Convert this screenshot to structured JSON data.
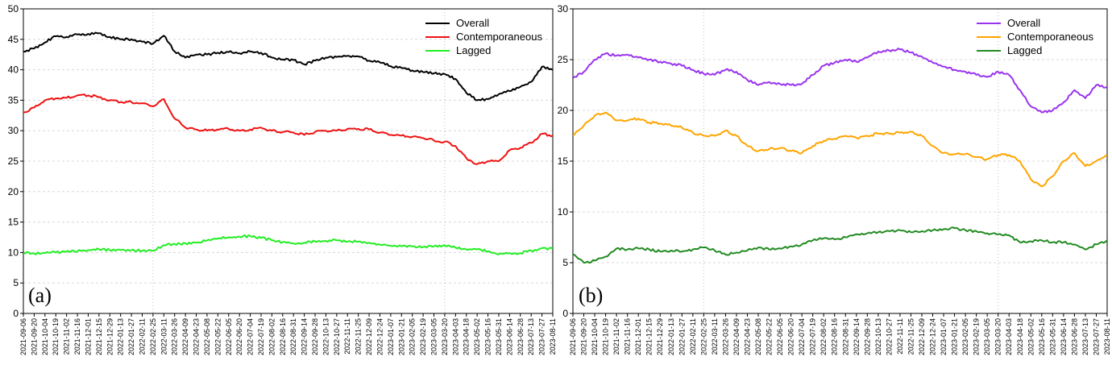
{
  "chart_data": [
    {
      "type": "line",
      "panel_label": "(a)",
      "ylim": [
        0,
        50
      ],
      "y_ticks": [
        0,
        5,
        10,
        15,
        20,
        25,
        30,
        35,
        40,
        45,
        50
      ],
      "x_tick_labels": [
        "2021-09-06",
        "2021-09-20",
        "2021-10-04",
        "2021-10-19",
        "2021-11-02",
        "2021-11-16",
        "2021-12-01",
        "2021-12-15",
        "2021-12-29",
        "2022-01-13",
        "2022-01-27",
        "2022-02-11",
        "2022-02-25",
        "2022-03-11",
        "2022-03-26",
        "2022-04-09",
        "2022-04-23",
        "2022-05-08",
        "2022-05-22",
        "2022-06-05",
        "2022-06-20",
        "2022-07-04",
        "2022-07-19",
        "2022-08-02",
        "2022-08-16",
        "2022-08-31",
        "2022-09-14",
        "2022-09-28",
        "2022-10-13",
        "2022-10-27",
        "2022-11-11",
        "2022-11-25",
        "2022-12-09",
        "2022-12-24",
        "2023-01-07",
        "2023-01-21",
        "2023-02-05",
        "2023-02-19",
        "2023-03-05",
        "2023-03-20",
        "2023-04-03",
        "2023-04-18",
        "2023-05-02",
        "2023-05-16",
        "2023-05-31",
        "2023-06-14",
        "2023-06-28",
        "2023-07-13",
        "2023-07-27",
        "2023-08-11"
      ],
      "vlines_at_label_index": [
        12,
        39
      ],
      "grid": true,
      "legend_position": "top-right",
      "series": [
        {
          "name": "Overall",
          "color": "#000000",
          "values": [
            43.0,
            43.5,
            44.5,
            45.5,
            45.4,
            45.8,
            45.9,
            46.0,
            45.4,
            45.0,
            45.0,
            44.6,
            44.3,
            45.6,
            43.0,
            42.0,
            42.5,
            42.5,
            42.8,
            42.9,
            42.7,
            43.0,
            42.8,
            42.0,
            41.7,
            41.6,
            40.9,
            41.5,
            42.0,
            42.1,
            42.3,
            42.2,
            41.5,
            41.2,
            40.6,
            40.3,
            39.9,
            39.6,
            39.4,
            39.3,
            38.5,
            36.2,
            35.0,
            35.2,
            36.0,
            36.5,
            37.2,
            38.0,
            40.5,
            40.0
          ]
        },
        {
          "name": "Contemporaneous",
          "color": "#ee1111",
          "values": [
            33.0,
            33.8,
            35.0,
            35.3,
            35.4,
            35.8,
            35.8,
            35.5,
            35.0,
            34.7,
            34.7,
            34.5,
            34.0,
            35.2,
            32.0,
            30.5,
            30.2,
            30.0,
            30.2,
            30.3,
            30.0,
            30.2,
            30.5,
            30.0,
            29.8,
            29.7,
            29.3,
            29.8,
            30.0,
            30.0,
            30.3,
            30.3,
            30.2,
            29.7,
            29.3,
            29.2,
            29.0,
            28.8,
            28.4,
            28.2,
            27.5,
            25.5,
            24.5,
            25.0,
            25.0,
            26.8,
            27.2,
            28.0,
            29.5,
            29.2
          ]
        },
        {
          "name": "Lagged",
          "color": "#22ee22",
          "values": [
            10.0,
            9.8,
            9.9,
            10.0,
            10.2,
            10.2,
            10.4,
            10.5,
            10.4,
            10.4,
            10.4,
            10.3,
            10.3,
            11.2,
            11.4,
            11.5,
            11.6,
            12.0,
            12.3,
            12.5,
            12.6,
            12.7,
            12.4,
            12.0,
            11.7,
            11.5,
            11.6,
            11.8,
            11.9,
            12.0,
            11.8,
            11.8,
            11.6,
            11.3,
            11.1,
            11.0,
            11.0,
            10.9,
            11.0,
            11.2,
            10.8,
            10.5,
            10.5,
            10.2,
            9.7,
            9.9,
            9.9,
            10.3,
            10.7,
            10.6
          ]
        }
      ]
    },
    {
      "type": "line",
      "panel_label": "(b)",
      "ylim": [
        0,
        30
      ],
      "y_ticks": [
        0,
        5,
        10,
        15,
        20,
        25,
        30
      ],
      "x_tick_labels": [
        "2021-09-06",
        "2021-09-20",
        "2021-10-04",
        "2021-10-19",
        "2021-11-02",
        "2021-11-16",
        "2021-12-01",
        "2021-12-15",
        "2021-12-29",
        "2022-01-13",
        "2022-01-27",
        "2022-02-11",
        "2022-02-25",
        "2022-03-11",
        "2022-03-26",
        "2022-04-09",
        "2022-04-23",
        "2022-05-08",
        "2022-05-22",
        "2022-06-05",
        "2022-06-20",
        "2022-07-04",
        "2022-07-19",
        "2022-08-02",
        "2022-08-16",
        "2022-08-31",
        "2022-09-14",
        "2022-09-28",
        "2022-10-13",
        "2022-10-27",
        "2022-11-11",
        "2022-11-25",
        "2022-12-09",
        "2022-12-24",
        "2023-01-07",
        "2023-01-21",
        "2023-02-05",
        "2023-02-19",
        "2023-03-05",
        "2023-03-20",
        "2023-04-03",
        "2023-04-18",
        "2023-05-02",
        "2023-05-16",
        "2023-05-31",
        "2023-06-14",
        "2023-06-28",
        "2023-07-13",
        "2023-07-27",
        "2023-08-11"
      ],
      "vlines_at_label_index": [
        12,
        39
      ],
      "grid": true,
      "legend_position": "top-right",
      "series": [
        {
          "name": "Overall",
          "color": "#9933ee",
          "values": [
            23.2,
            23.8,
            25.0,
            25.6,
            25.4,
            25.5,
            25.2,
            25.0,
            24.8,
            24.6,
            24.4,
            24.0,
            23.6,
            23.5,
            24.0,
            23.8,
            23.0,
            22.5,
            22.8,
            22.6,
            22.5,
            22.6,
            23.5,
            24.4,
            24.7,
            25.0,
            24.8,
            25.2,
            25.8,
            25.9,
            26.0,
            25.7,
            25.3,
            24.7,
            24.3,
            24.0,
            23.8,
            23.5,
            23.3,
            23.8,
            23.5,
            22.0,
            20.4,
            19.8,
            20.0,
            20.8,
            22.0,
            21.2,
            22.5,
            22.3
          ]
        },
        {
          "name": "Contemporaneous",
          "color": "#ffa500",
          "values": [
            17.5,
            18.5,
            19.5,
            19.8,
            19.0,
            19.0,
            19.2,
            18.8,
            18.7,
            18.5,
            18.3,
            17.8,
            17.5,
            17.5,
            18.0,
            17.5,
            16.5,
            16.0,
            16.2,
            16.3,
            16.0,
            15.8,
            16.5,
            17.0,
            17.2,
            17.5,
            17.3,
            17.5,
            17.7,
            17.7,
            17.8,
            17.9,
            17.5,
            16.5,
            15.8,
            15.7,
            15.7,
            15.4,
            15.2,
            15.6,
            15.6,
            15.0,
            13.2,
            12.5,
            13.5,
            15.0,
            15.8,
            14.5,
            15.0,
            15.6
          ]
        },
        {
          "name": "Lagged",
          "color": "#228b22",
          "values": [
            5.8,
            5.0,
            5.2,
            5.6,
            6.4,
            6.3,
            6.4,
            6.3,
            6.1,
            6.2,
            6.1,
            6.3,
            6.5,
            6.2,
            5.8,
            6.0,
            6.2,
            6.5,
            6.3,
            6.4,
            6.6,
            6.8,
            7.2,
            7.4,
            7.3,
            7.5,
            7.8,
            7.9,
            8.0,
            8.1,
            8.2,
            8.0,
            8.1,
            8.2,
            8.3,
            8.4,
            8.2,
            8.1,
            7.9,
            7.8,
            7.7,
            7.0,
            7.1,
            7.2,
            7.0,
            7.0,
            6.8,
            6.3,
            6.8,
            7.2
          ]
        }
      ]
    }
  ]
}
